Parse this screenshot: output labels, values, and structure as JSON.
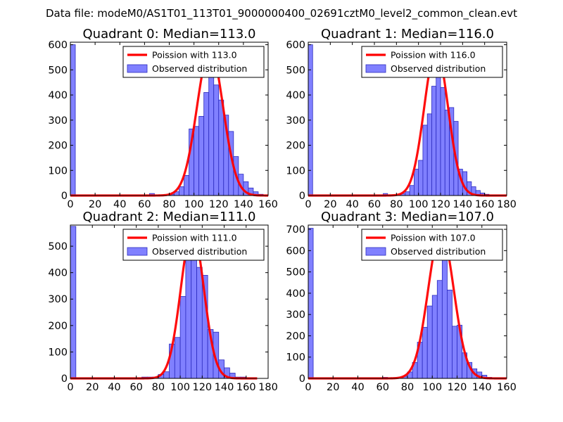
{
  "figure": {
    "suptitle": "Data file: modeM0/AS1T01_113T01_9000000400_02691cztM0_level2_common_clean.evt",
    "colors": {
      "background": "#ffffff",
      "bar_fill": "#8080ff",
      "bar_edge": "#2b2bbf",
      "curve": "#ff0000"
    }
  },
  "chart_data": [
    {
      "type": "bar",
      "title": "Quadrant 0: Median=113.0",
      "xlim": [
        0,
        160
      ],
      "ylim": [
        0,
        610
      ],
      "xticks": [
        0,
        20,
        40,
        60,
        80,
        100,
        120,
        140,
        160
      ],
      "yticks": [
        0,
        100,
        200,
        300,
        400,
        500,
        600
      ],
      "bin_width": 4,
      "bars": [
        {
          "x": 0,
          "value": 600
        },
        {
          "x": 64,
          "value": 8
        },
        {
          "x": 80,
          "value": 5
        },
        {
          "x": 84,
          "value": 15
        },
        {
          "x": 88,
          "value": 35
        },
        {
          "x": 92,
          "value": 80
        },
        {
          "x": 96,
          "value": 265
        },
        {
          "x": 100,
          "value": 275
        },
        {
          "x": 104,
          "value": 315
        },
        {
          "x": 108,
          "value": 410
        },
        {
          "x": 112,
          "value": 490
        },
        {
          "x": 116,
          "value": 440
        },
        {
          "x": 120,
          "value": 380
        },
        {
          "x": 124,
          "value": 320
        },
        {
          "x": 128,
          "value": 255
        },
        {
          "x": 132,
          "value": 155
        },
        {
          "x": 136,
          "value": 85
        },
        {
          "x": 140,
          "value": 55
        },
        {
          "x": 144,
          "value": 30
        },
        {
          "x": 148,
          "value": 15
        },
        {
          "x": 152,
          "value": 5
        }
      ],
      "curve": {
        "label": "Poission with 113.0",
        "mean": 113.0,
        "peak": 580,
        "sigma": 10.6,
        "x_range": [
          0,
          160
        ]
      },
      "legend": [
        "Poission with 113.0",
        "Observed distribution"
      ],
      "legend_position": "top-right"
    },
    {
      "type": "bar",
      "title": "Quadrant 1: Median=116.0",
      "xlim": [
        0,
        180
      ],
      "ylim": [
        0,
        610
      ],
      "xticks": [
        0,
        20,
        40,
        60,
        80,
        100,
        120,
        140,
        160,
        180
      ],
      "yticks": [
        0,
        100,
        200,
        300,
        400,
        500,
        600
      ],
      "bin_width": 4,
      "bars": [
        {
          "x": 0,
          "value": 600
        },
        {
          "x": 68,
          "value": 8
        },
        {
          "x": 84,
          "value": 8
        },
        {
          "x": 88,
          "value": 15
        },
        {
          "x": 92,
          "value": 40
        },
        {
          "x": 96,
          "value": 105
        },
        {
          "x": 100,
          "value": 140
        },
        {
          "x": 104,
          "value": 280
        },
        {
          "x": 108,
          "value": 325
        },
        {
          "x": 112,
          "value": 435
        },
        {
          "x": 116,
          "value": 470
        },
        {
          "x": 120,
          "value": 430
        },
        {
          "x": 124,
          "value": 340
        },
        {
          "x": 128,
          "value": 350
        },
        {
          "x": 132,
          "value": 295
        },
        {
          "x": 136,
          "value": 105
        },
        {
          "x": 140,
          "value": 95
        },
        {
          "x": 144,
          "value": 55
        },
        {
          "x": 148,
          "value": 35
        },
        {
          "x": 152,
          "value": 20
        },
        {
          "x": 156,
          "value": 10
        },
        {
          "x": 160,
          "value": 5
        }
      ],
      "curve": {
        "label": "Poission with 116.0",
        "mean": 116.0,
        "peak": 580,
        "sigma": 10.8,
        "x_range": [
          0,
          180
        ]
      },
      "legend": [
        "Poission with 116.0",
        "Observed distribution"
      ],
      "legend_position": "top-right"
    },
    {
      "type": "bar",
      "title": "Quadrant 2: Median=111.0",
      "xlim": [
        0,
        180
      ],
      "ylim": [
        0,
        580
      ],
      "xticks": [
        0,
        20,
        40,
        60,
        80,
        100,
        120,
        140,
        160,
        180
      ],
      "yticks": [
        0,
        100,
        200,
        300,
        400,
        500
      ],
      "bin_width": 5,
      "bars": [
        {
          "x": 0,
          "value": 575
        },
        {
          "x": 65,
          "value": 5
        },
        {
          "x": 70,
          "value": 5
        },
        {
          "x": 75,
          "value": 5
        },
        {
          "x": 80,
          "value": 15
        },
        {
          "x": 85,
          "value": 25
        },
        {
          "x": 90,
          "value": 130
        },
        {
          "x": 95,
          "value": 155
        },
        {
          "x": 100,
          "value": 310
        },
        {
          "x": 105,
          "value": 525
        },
        {
          "x": 110,
          "value": 460
        },
        {
          "x": 115,
          "value": 420
        },
        {
          "x": 120,
          "value": 390
        },
        {
          "x": 125,
          "value": 185
        },
        {
          "x": 130,
          "value": 175
        },
        {
          "x": 135,
          "value": 70
        },
        {
          "x": 140,
          "value": 40
        },
        {
          "x": 145,
          "value": 20
        },
        {
          "x": 150,
          "value": 5
        },
        {
          "x": 155,
          "value": 5
        }
      ],
      "curve": {
        "label": "Poission with 111.0",
        "mean": 111.0,
        "peak": 560,
        "sigma": 10.5,
        "x_range": [
          0,
          170
        ]
      },
      "legend": [
        "Poission with 111.0",
        "Observed distribution"
      ],
      "legend_position": "top-right"
    },
    {
      "type": "bar",
      "title": "Quadrant 3: Median=107.0",
      "xlim": [
        0,
        160
      ],
      "ylim": [
        0,
        720
      ],
      "xticks": [
        0,
        20,
        40,
        60,
        80,
        100,
        120,
        140,
        160
      ],
      "yticks": [
        0,
        100,
        200,
        300,
        400,
        500,
        600,
        700
      ],
      "bin_width": 4,
      "bars": [
        {
          "x": 0,
          "value": 705
        },
        {
          "x": 60,
          "value": 5
        },
        {
          "x": 76,
          "value": 10
        },
        {
          "x": 80,
          "value": 30
        },
        {
          "x": 84,
          "value": 75
        },
        {
          "x": 88,
          "value": 170
        },
        {
          "x": 92,
          "value": 240
        },
        {
          "x": 96,
          "value": 340
        },
        {
          "x": 100,
          "value": 390
        },
        {
          "x": 104,
          "value": 460
        },
        {
          "x": 108,
          "value": 555
        },
        {
          "x": 112,
          "value": 415
        },
        {
          "x": 116,
          "value": 245
        },
        {
          "x": 120,
          "value": 250
        },
        {
          "x": 124,
          "value": 120
        },
        {
          "x": 128,
          "value": 75
        },
        {
          "x": 132,
          "value": 45
        },
        {
          "x": 136,
          "value": 30
        },
        {
          "x": 140,
          "value": 15
        },
        {
          "x": 144,
          "value": 5
        }
      ],
      "curve": {
        "label": "Poission with 107.0",
        "mean": 107.0,
        "peak": 690,
        "sigma": 10.3,
        "x_range": [
          0,
          160
        ]
      },
      "legend": [
        "Poission with 107.0",
        "Observed distribution"
      ],
      "legend_position": "top-right"
    }
  ]
}
